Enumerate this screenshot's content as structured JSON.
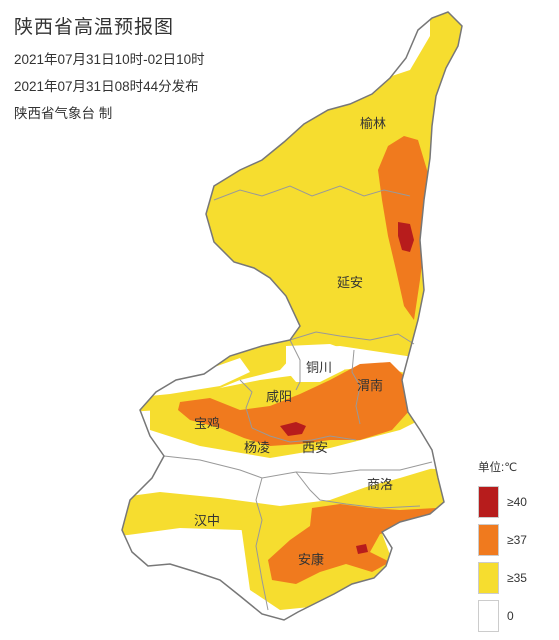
{
  "header": {
    "title": "陕西省高温预报图",
    "valid_period": "2021年07月31日10时-02日10时",
    "issued": "2021年07月31日08时44分发布",
    "producer": "陕西省气象台 制"
  },
  "cities": [
    {
      "name": "榆林"
    },
    {
      "name": "延安"
    },
    {
      "name": "铜川"
    },
    {
      "name": "渭南"
    },
    {
      "name": "咸阳"
    },
    {
      "name": "宝鸡"
    },
    {
      "name": "杨凌"
    },
    {
      "name": "西安"
    },
    {
      "name": "商洛"
    },
    {
      "name": "汉中"
    },
    {
      "name": "安康"
    }
  ],
  "legend": {
    "unit": "单位:℃",
    "items": [
      {
        "label": "≥40",
        "color": "#b71c1c"
      },
      {
        "label": "≥37",
        "color": "#f07a1e"
      },
      {
        "label": "≥35",
        "color": "#f6dd2f"
      },
      {
        "label": "0",
        "color": "#ffffff"
      }
    ]
  },
  "colors": {
    "level_40": "#b71c1c",
    "level_37": "#f07a1e",
    "level_35": "#f6dd2f",
    "level_0": "#ffffff",
    "province_border": "#777777",
    "city_border": "#999999"
  }
}
